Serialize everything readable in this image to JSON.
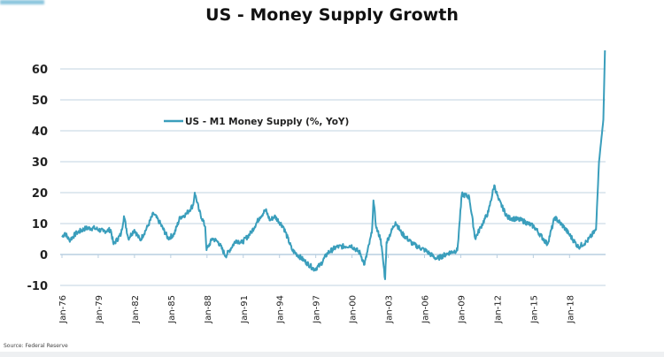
{
  "chart_data": {
    "type": "line",
    "title": "US - Money Supply Growth",
    "xlabel": "",
    "ylabel": "",
    "ylim": [
      -10,
      66
    ],
    "yticks": [
      -10,
      0,
      10,
      20,
      30,
      40,
      50,
      60
    ],
    "xtick_labels": [
      "Jan-76",
      "Jan-79",
      "Jan-82",
      "Jan-85",
      "Jan-88",
      "Jan-91",
      "Jan-94",
      "Jan-97",
      "Jan-00",
      "Jan-03",
      "Jan-06",
      "Jan-09",
      "Jan-12",
      "Jan-15",
      "Jan-18"
    ],
    "grid": true,
    "legend_position": "top-left",
    "source": "Source: Federal Reserve",
    "series": [
      {
        "name": "US - M1 Money Supply (%, YoY)",
        "color": "#3a9ebc",
        "x": [
          1976.0,
          1976.24,
          1976.61,
          1977.22,
          1977.95,
          1978.69,
          1979.42,
          1980.03,
          1980.27,
          1980.89,
          1981.13,
          1981.49,
          1981.99,
          1982.47,
          1983.08,
          1983.57,
          1984.06,
          1984.79,
          1985.28,
          1985.77,
          1986.26,
          1986.86,
          1986.99,
          1987.36,
          1987.85,
          1987.96,
          1988.45,
          1988.94,
          1989.55,
          1990.41,
          1990.89,
          1991.63,
          1992.36,
          1992.85,
          1993.22,
          1993.58,
          1994.32,
          1995.05,
          1996.02,
          1996.88,
          1997.37,
          1997.98,
          1998.71,
          1999.93,
          2000.67,
          2001.03,
          2001.64,
          2001.77,
          2002.01,
          2002.37,
          2002.74,
          2002.86,
          2003.6,
          2004.08,
          2005.06,
          2006.04,
          2007.01,
          2007.99,
          2008.72,
          2009.09,
          2009.7,
          2010.19,
          2010.67,
          2011.29,
          2011.77,
          2012.14,
          2012.87,
          2014.09,
          2015.07,
          2016.17,
          2016.78,
          2017.51,
          2018.73,
          2019.46,
          2020.19,
          2020.44,
          2020.8,
          2020.93
        ],
        "values": [
          5.6,
          7,
          4.6,
          7,
          8.5,
          8.5,
          7.5,
          8,
          3.3,
          6.6,
          12.4,
          5.2,
          8,
          4.6,
          9,
          13.3,
          10.5,
          5.2,
          6.6,
          12,
          13,
          16,
          20,
          14,
          9,
          1.4,
          5.2,
          4,
          -0.5,
          4.6,
          3.8,
          7,
          12,
          14.4,
          11,
          12.4,
          9,
          1.4,
          -1.9,
          -4.8,
          -3.4,
          0.5,
          2.4,
          2.9,
          0.5,
          -3.3,
          7,
          17.5,
          8.6,
          5,
          -8,
          4,
          10.5,
          7,
          3.3,
          1.4,
          -1.4,
          0.5,
          1.4,
          19.5,
          18.6,
          5.2,
          9,
          13.8,
          22.4,
          17.6,
          12,
          11,
          9,
          3.3,
          12,
          9,
          2.4,
          4.3,
          8,
          30,
          43.6,
          66
        ]
      }
    ]
  }
}
